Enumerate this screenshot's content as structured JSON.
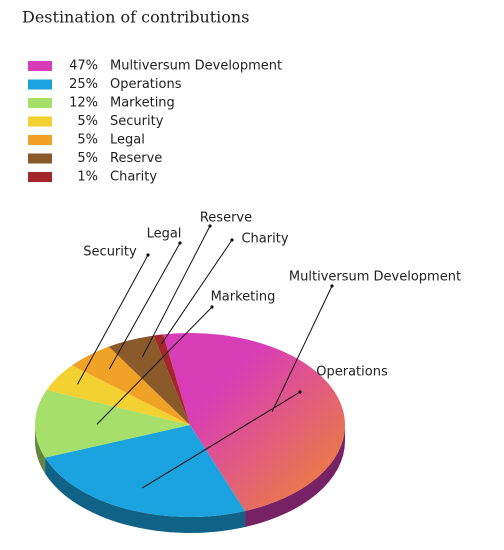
{
  "chart_data": {
    "type": "pie",
    "title": "Destination of contributions",
    "categories": [
      "Multiversum Development",
      "Operations",
      "Marketing",
      "Security",
      "Legal",
      "Reserve",
      "Charity"
    ],
    "values": [
      47,
      25,
      12,
      5,
      5,
      5,
      1
    ],
    "value_labels": [
      "47%",
      "25%",
      "12%",
      "5%",
      "5%",
      "5%",
      "1%"
    ],
    "colors": [
      "#d83db8",
      "#1aa3df",
      "#a6e06a",
      "#f3d133",
      "#f0a226",
      "#8b5a2b",
      "#a3262a"
    ]
  }
}
